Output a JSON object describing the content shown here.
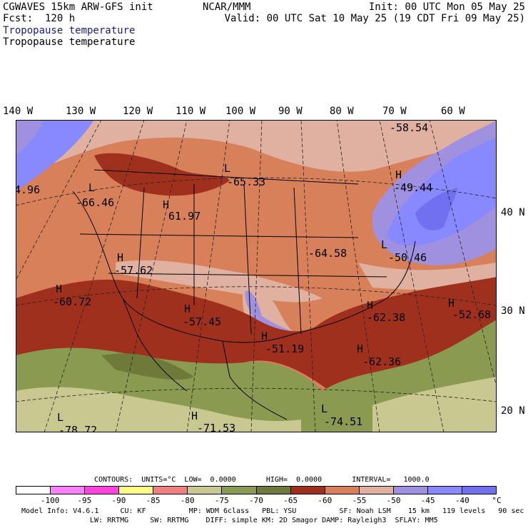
{
  "header": {
    "left1": "CGWAVES 15km ARW-GFS init",
    "left2": "Fcst:  120 h",
    "center1": "NCAR/MMM",
    "right1": "Init: 00 UTC Mon 05 May 25",
    "right2": "Valid: 00 UTC Sat 10 May 25 (19 CDT Fri 09 May 25)",
    "field1": "Tropopause temperature",
    "field2": "Tropopause temperature"
  },
  "lon_labels": [
    "140 W",
    "130 W",
    "120 W",
    "110 W",
    "100 W",
    "90 W",
    "80 W",
    "70 W",
    "60 W"
  ],
  "lat_labels": [
    "40 N",
    "30 N",
    "20 N"
  ],
  "centers": [
    {
      "letter": "",
      "value": "4.96"
    },
    {
      "letter": "L",
      "value": "-66.46"
    },
    {
      "letter": "H",
      "value": "61.97"
    },
    {
      "letter": "L",
      "value": "-65.33"
    },
    {
      "letter": "",
      "value": "-58.54"
    },
    {
      "letter": "H",
      "value": "-49.44"
    },
    {
      "letter": "H",
      "value": "-57.62"
    },
    {
      "letter": "",
      "value": "-64.58"
    },
    {
      "letter": "L",
      "value": "-50.46"
    },
    {
      "letter": "H",
      "value": "-60.72"
    },
    {
      "letter": "H",
      "value": "-57.45"
    },
    {
      "letter": "H",
      "value": "-62.38"
    },
    {
      "letter": "H",
      "value": "-52.68"
    },
    {
      "letter": "H",
      "value": "-51.19"
    },
    {
      "letter": "H",
      "value": "-62.36"
    },
    {
      "letter": "L",
      "value": "-74.51"
    },
    {
      "letter": "H",
      "value": "-71.53"
    },
    {
      "letter": "L",
      "value": "-78.72"
    }
  ],
  "contours": {
    "text": "CONTOURS:  UNITS=°C  LOW=  0.0000       HIGH=  0.0000       INTERVAL=   1000.0"
  },
  "colorbar": {
    "colors": [
      "#ffffff",
      "#ff80ff",
      "#ff44dd",
      "#ffff88",
      "#f08080",
      "#c8c890",
      "#8a9a50",
      "#6f7a3a",
      "#a0301e",
      "#d8805a",
      "#e0b0a0",
      "#a090e0",
      "#8888ff",
      "#7070f0"
    ],
    "ticks": [
      "-100",
      "-95",
      "-90",
      "-85",
      "-80",
      "-75",
      "-70",
      "-65",
      "-60",
      "-55",
      "-50",
      "-45",
      "-40",
      "°C"
    ]
  },
  "model_info": {
    "line1": "Model Info: V4.6.1     CU: KF          MP: WDM 6class   PBL: YSU          SF: Noah LSM    15 km   119 levels   90 sec",
    "line2": "LW: RRTMG     SW: RRTMG    DIFF: simple KM: 2D Smagor DAMP: Rayleigh3  SFLAY: MM5"
  }
}
